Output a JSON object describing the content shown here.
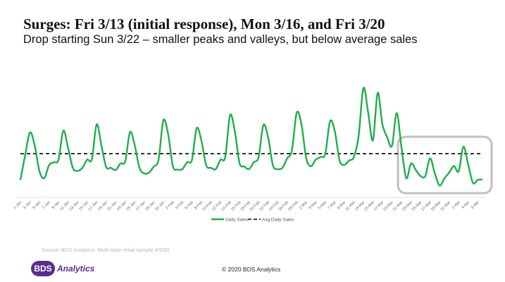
{
  "slide": {
    "title": "Surges: Fri 3/13 (initial response), Mon 3/16, and Fri 3/20",
    "subtitle": "Drop starting Sun 3/22 – smaller peaks and valleys, but below average sales",
    "source": "Source: BDS Analytics: Multi-state retail sample   4/9/20",
    "copyright": "© 2020 BDS Analytics",
    "logo": {
      "mark": "BDS",
      "word": "Analytics",
      "color": "#5a2d91"
    }
  },
  "chart_data": {
    "type": "line",
    "title": "",
    "xlabel": "",
    "ylabel": "",
    "y_axis_shown": false,
    "grid": false,
    "legend_placement": "bottom",
    "x": [
      "1-Jan",
      "2-Jan",
      "3-Jan",
      "4-Jan",
      "5-Jan",
      "6-Jan",
      "7-Jan",
      "8-Jan",
      "9-Jan",
      "10-Jan",
      "11-Jan",
      "12-Jan",
      "13-Jan",
      "14-Jan",
      "15-Jan",
      "16-Jan",
      "17-Jan",
      "18-Jan",
      "19-Jan",
      "20-Jan",
      "21-Jan",
      "22-Jan",
      "23-Jan",
      "24-Jan",
      "25-Jan",
      "26-Jan",
      "27-Jan",
      "28-Jan",
      "29-Jan",
      "30-Jan",
      "31-Jan",
      "1-Feb",
      "2-Feb",
      "3-Feb",
      "4-Feb",
      "5-Feb",
      "6-Feb",
      "7-Feb",
      "8-Feb",
      "9-Feb",
      "10-Feb",
      "11-Feb",
      "12-Feb",
      "13-Feb",
      "14-Feb",
      "15-Feb",
      "16-Feb",
      "17-Feb",
      "18-Feb",
      "19-Feb",
      "20-Feb",
      "21-Feb",
      "22-Feb",
      "23-Feb",
      "24-Feb",
      "25-Feb",
      "26-Feb",
      "27-Feb",
      "28-Feb",
      "29-Feb",
      "1-Mar",
      "2-Mar",
      "3-Mar",
      "4-Mar",
      "5-Mar",
      "6-Mar",
      "7-Mar",
      "8-Mar",
      "9-Mar",
      "10-Mar",
      "11-Mar",
      "12-Mar",
      "13-Mar",
      "14-Mar",
      "15-Mar",
      "16-Mar",
      "17-Mar",
      "18-Mar",
      "19-Mar",
      "20-Mar",
      "21-Mar",
      "22-Mar",
      "23-Mar",
      "24-Mar",
      "25-Mar",
      "26-Mar",
      "27-Mar",
      "28-Mar",
      "29-Mar",
      "30-Mar",
      "31-Mar",
      "1-Apr",
      "2-Apr",
      "3-Apr",
      "4-Apr",
      "5-Apr",
      "6-Apr",
      "7-Apr"
    ],
    "tick_labels": [
      "1-Jan",
      "3-Jan",
      "5-Jan",
      "7-Jan",
      "9-Jan",
      "11-Jan",
      "13-Jan",
      "15-Jan",
      "17-Jan",
      "19-Jan",
      "21-Jan",
      "23-Jan",
      "25-Jan",
      "27-Jan",
      "29-Jan",
      "31-Jan",
      "2-Feb",
      "4-Feb",
      "6-Feb",
      "8-Feb",
      "10-Feb",
      "12-Feb",
      "14-Feb",
      "16-Feb",
      "18-Feb",
      "20-Feb",
      "22-Feb",
      "24-Feb",
      "26-Feb",
      "28-Feb",
      "1-Mar",
      "3-Mar",
      "5-Mar",
      "7-Mar",
      "9-Mar",
      "11-Mar",
      "13-Mar",
      "15-Mar",
      "17-Mar",
      "19-Mar",
      "21-Mar",
      "23-Mar",
      "25-Mar",
      "27-Mar",
      "29-Mar",
      "31-Mar",
      "2-Apr",
      "4-Apr",
      "6-Apr"
    ],
    "series": [
      {
        "name": "Daily Sales",
        "color": "#1fae4b",
        "style": "solid",
        "values": [
          39,
          97,
          149,
          119,
          59,
          43,
          73,
          80,
          86,
          153,
          114,
          67,
          60,
          67,
          86,
          87,
          168,
          119,
          69,
          67,
          62,
          77,
          82,
          150,
          119,
          67,
          54,
          56,
          70,
          86,
          177,
          146,
          71,
          63,
          64,
          80,
          85,
          159,
          130,
          73,
          67,
          64,
          86,
          92,
          189,
          152,
          78,
          70,
          64,
          80,
          92,
          166,
          138,
          73,
          64,
          67,
          89,
          108,
          195,
          168,
          89,
          71,
          86,
          92,
          100,
          175,
          152,
          84,
          74,
          84,
          92,
          141,
          252,
          196,
          131,
          241,
          168,
          138,
          118,
          194,
          114,
          43,
          77,
          62,
          48,
          48,
          89,
          54,
          26,
          42,
          56,
          71,
          59,
          116,
          75,
          32,
          39,
          40
        ]
      },
      {
        "name": "Avg.Daily Sales",
        "color": "#000000",
        "style": "dashed",
        "value": 100
      }
    ],
    "ylim": [
      0,
      270
    ],
    "annotation": {
      "type": "rounded-box",
      "from": "21-Mar",
      "to": "7-Apr",
      "color": "#bfbfbf"
    }
  }
}
